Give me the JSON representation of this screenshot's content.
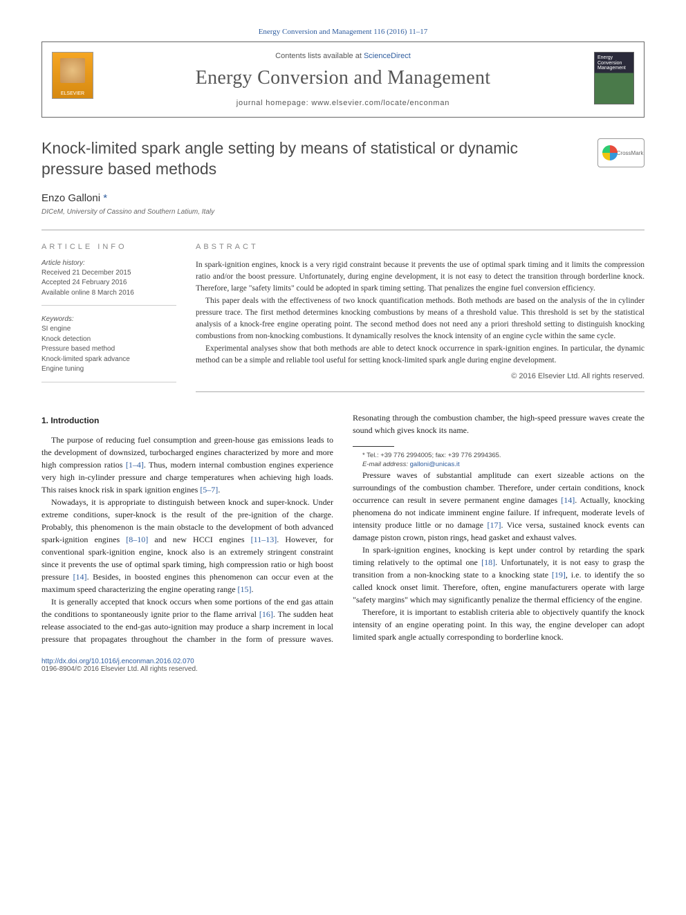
{
  "citation": "Energy Conversion and Management 116 (2016) 11–17",
  "header": {
    "contents_prefix": "Contents lists available at ",
    "contents_link": "ScienceDirect",
    "journal_name": "Energy Conversion and Management",
    "homepage_prefix": "journal homepage: ",
    "homepage": "www.elsevier.com/locate/enconman",
    "publisher_logo_text": "ELSEVIER",
    "cover_text": "Energy Conversion Management"
  },
  "crossmark_label": "CrossMark",
  "title": "Knock-limited spark angle setting by means of statistical or dynamic pressure based methods",
  "author": "Enzo Galloni",
  "author_mark": "*",
  "affiliation": "DICeM, University of Cassino and Southern Latium, Italy",
  "info": {
    "heading": "ARTICLE INFO",
    "history_label": "Article history:",
    "received": "Received 21 December 2015",
    "accepted": "Accepted 24 February 2016",
    "online": "Available online 8 March 2016",
    "keywords_label": "Keywords:",
    "keywords": [
      "SI engine",
      "Knock detection",
      "Pressure based method",
      "Knock-limited spark advance",
      "Engine tuning"
    ]
  },
  "abstract": {
    "heading": "ABSTRACT",
    "p1": "In spark-ignition engines, knock is a very rigid constraint because it prevents the use of optimal spark timing and it limits the compression ratio and/or the boost pressure. Unfortunately, during engine development, it is not easy to detect the transition through borderline knock. Therefore, large \"safety limits\" could be adopted in spark timing setting. That penalizes the engine fuel conversion efficiency.",
    "p2": "This paper deals with the effectiveness of two knock quantification methods. Both methods are based on the analysis of the in cylinder pressure trace. The first method determines knocking combustions by means of a threshold value. This threshold is set by the statistical analysis of a knock-free engine operating point. The second method does not need any a priori threshold setting to distinguish knocking combustions from non-knocking combustions. It dynamically resolves the knock intensity of an engine cycle within the same cycle.",
    "p3": "Experimental analyses show that both methods are able to detect knock occurrence in spark-ignition engines. In particular, the dynamic method can be a simple and reliable tool useful for setting knock-limited spark angle during engine development.",
    "copyright": "© 2016 Elsevier Ltd. All rights reserved."
  },
  "section1": {
    "heading": "1. Introduction",
    "p1a": "The purpose of reducing fuel consumption and green-house gas emissions leads to the development of downsized, turbocharged engines characterized by more and more high compression ratios ",
    "p1_ref1": "[1–4]",
    "p1b": ". Thus, modern internal combustion engines experience very high in-cylinder pressure and charge temperatures when achieving high loads. This raises knock risk in spark ignition engines ",
    "p1_ref2": "[5–7]",
    "p1c": ".",
    "p2a": "Nowadays, it is appropriate to distinguish between knock and super-knock. Under extreme conditions, super-knock is the result of the pre-ignition of the charge. Probably, this phenomenon is the main obstacle to the development of both advanced spark-ignition engines ",
    "p2_ref1": "[8–10]",
    "p2b": " and new HCCI engines ",
    "p2_ref2": "[11–13]",
    "p2c": ". However, for conventional spark-ignition engine, knock also is an extremely stringent constraint since it prevents the use of optimal spark timing, high compression ratio or high boost pressure ",
    "p2_ref3": "[14]",
    "p2d": ". Besides, in boosted engines this phenomenon can occur even at the maximum speed characterizing the engine operating range ",
    "p2_ref4": "[15]",
    "p2e": ".",
    "p3a": "It is generally accepted that knock occurs when some portions of the end gas attain the conditions to spontaneously ignite prior to the flame arrival ",
    "p3_ref1": "[16]",
    "p3b": ". The sudden heat release associated to the end-gas auto-ignition may produce a sharp increment in local pressure that propagates throughout the chamber in the form of pressure waves. Resonating through the combustion chamber, the high-speed pressure waves create the sound which gives knock its name.",
    "p4a": "Pressure waves of substantial amplitude can exert sizeable actions on the surroundings of the combustion chamber. Therefore, under certain conditions, knock occurrence can result in severe permanent engine damages ",
    "p4_ref1": "[14]",
    "p4b": ". Actually, knocking phenomena do not indicate imminent engine failure. If infrequent, moderate levels of intensity produce little or no damage ",
    "p4_ref2": "[17]",
    "p4c": ". Vice versa, sustained knock events can damage piston crown, piston rings, head gasket and exhaust valves.",
    "p5a": "In spark-ignition engines, knocking is kept under control by retarding the spark timing relatively to the optimal one ",
    "p5_ref1": "[18]",
    "p5b": ". Unfortunately, it is not easy to grasp the transition from a non-knocking state to a knocking state ",
    "p5_ref2": "[19]",
    "p5c": ", i.e. to identify the so called knock onset limit. Therefore, often, engine manufacturers operate with large \"safety margins\" which may significantly penalize the thermal efficiency of the engine.",
    "p6": "Therefore, it is important to establish criteria able to objectively quantify the knock intensity of an engine operating point. In this way, the engine developer can adopt limited spark angle actually corresponding to borderline knock."
  },
  "footnote": {
    "contact": "* Tel.: +39 776 2994005; fax: +39 776 2994365.",
    "email_label": "E-mail address: ",
    "email": "galloni@unicas.it"
  },
  "footer": {
    "doi": "http://dx.doi.org/10.1016/j.enconman.2016.02.070",
    "issn": "0196-8904/© 2016 Elsevier Ltd. All rights reserved."
  },
  "colors": {
    "link": "#2e5c9e",
    "text": "#333333",
    "heading_gray": "#888888",
    "rule": "#aaaaaa"
  }
}
